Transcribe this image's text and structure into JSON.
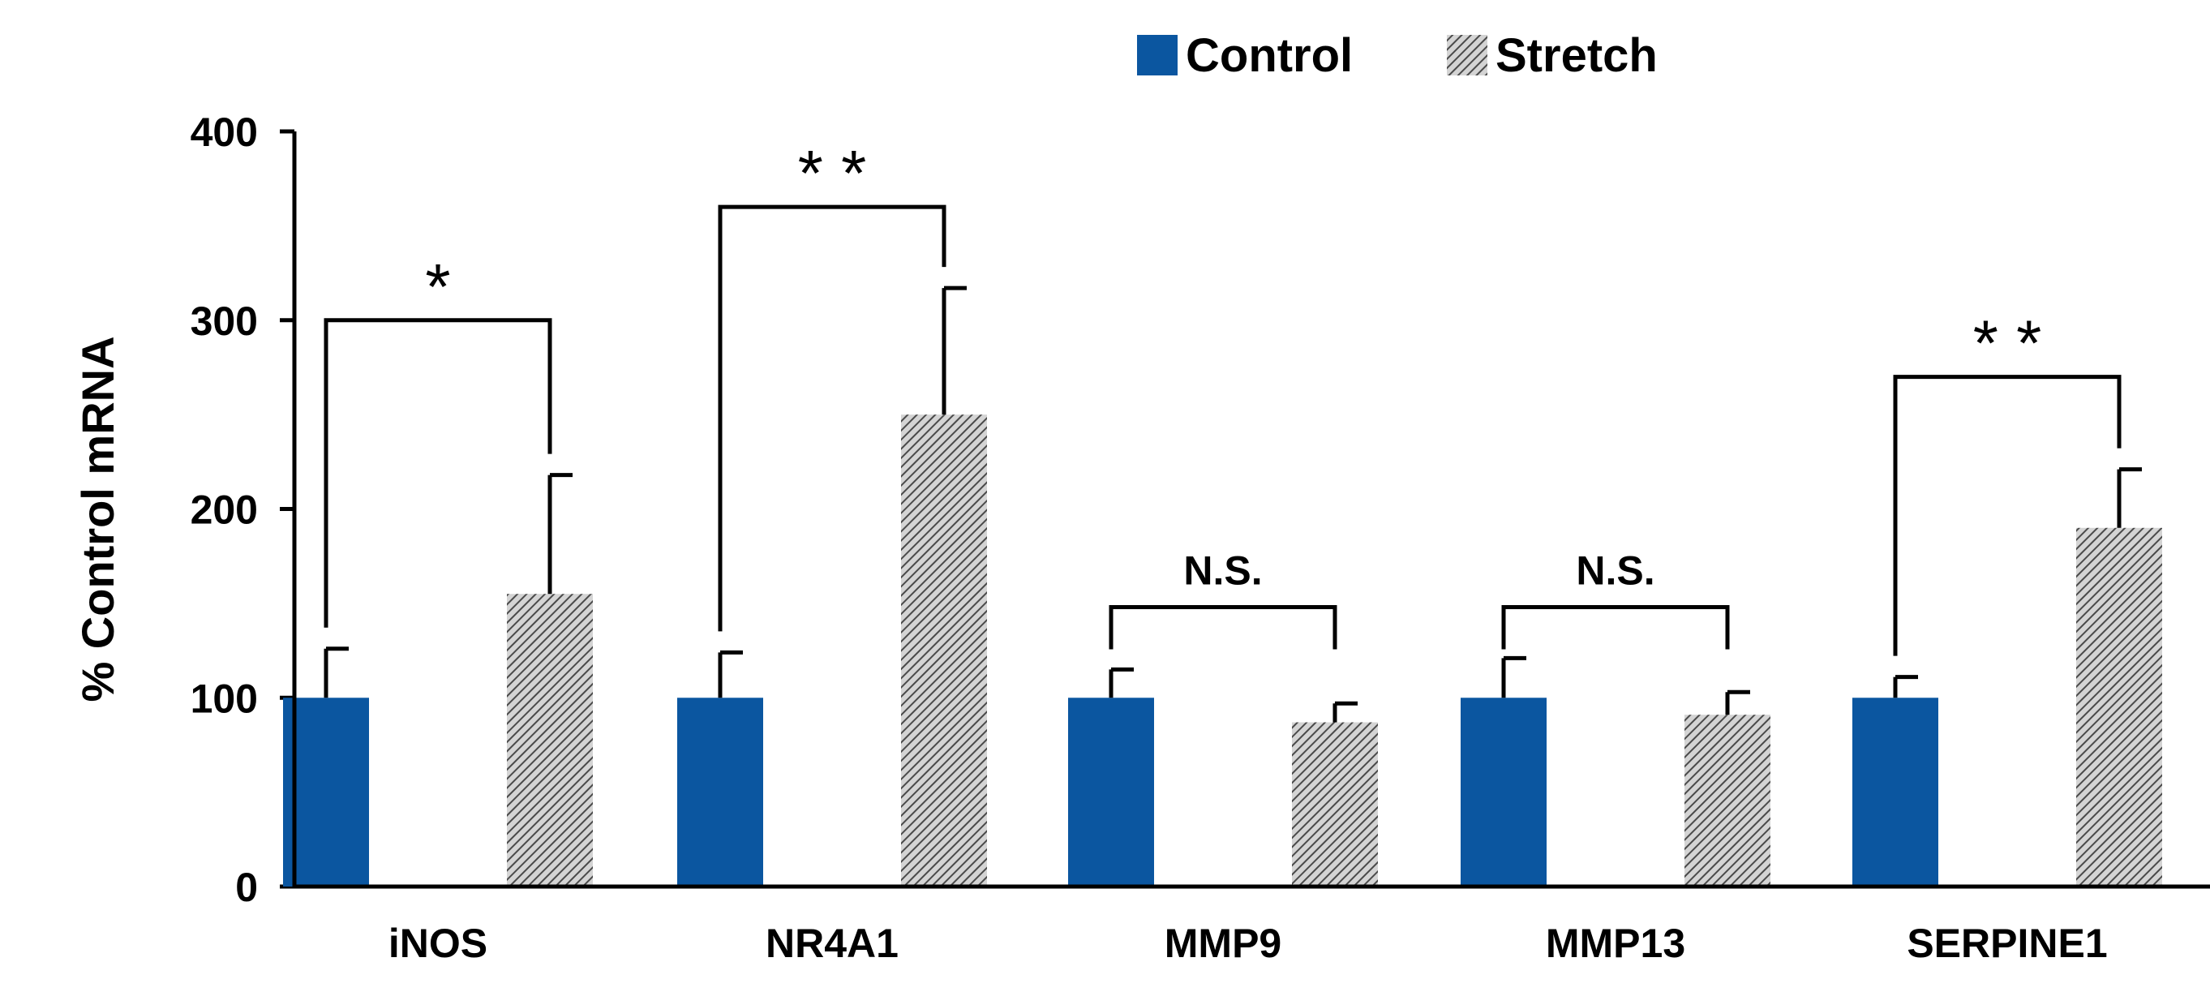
{
  "chart_data": {
    "type": "bar",
    "title": "",
    "xlabel": "",
    "ylabel": "% Control mRNA",
    "ylim": [
      0,
      400
    ],
    "yticks": [
      0,
      100,
      200,
      300,
      400
    ],
    "categories": [
      "iNOS",
      "NR4A1",
      "MMP9",
      "MMP13",
      "SERPINE1"
    ],
    "series": [
      {
        "name": "Control",
        "values": [
          100,
          100,
          100,
          100,
          100
        ],
        "errors": [
          26,
          24,
          15,
          21,
          11
        ],
        "color": "#0b56a0",
        "pattern": "solid"
      },
      {
        "name": "Stretch",
        "values": [
          155,
          250,
          87,
          91,
          190
        ],
        "errors": [
          63,
          67,
          10,
          12,
          31
        ],
        "color": "#9a9a9a",
        "pattern": "hatched"
      }
    ],
    "legend": {
      "position": "top-right",
      "entries": [
        "Control",
        "Stretch"
      ]
    },
    "significance": [
      {
        "category": "iNOS",
        "label": "*",
        "level": 300
      },
      {
        "category": "NR4A1",
        "label": "* *",
        "level": 360
      },
      {
        "category": "MMP9",
        "label": "N.S.",
        "level": 148
      },
      {
        "category": "MMP13",
        "label": "N.S.",
        "level": 148
      },
      {
        "category": "SERPINE1",
        "label": "* *",
        "level": 270
      }
    ]
  }
}
